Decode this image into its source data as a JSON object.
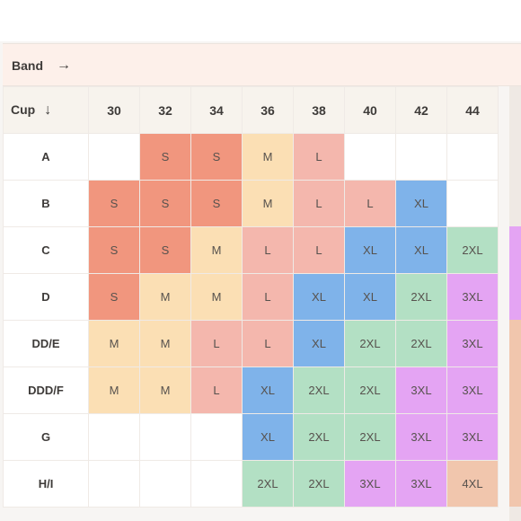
{
  "band_header": {
    "label": "Band",
    "arrow": "→"
  },
  "cup_header": {
    "label": "Cup",
    "arrow": "↓"
  },
  "bands": [
    "30",
    "32",
    "34",
    "36",
    "38",
    "40",
    "42",
    "44"
  ],
  "colors": {
    "S": "#f1967e",
    "M": "#fbdfb4",
    "L": "#f4b7ad",
    "XL": "#7fb3ea",
    "2XL": "#b3e0c4",
    "3XL": "#e4a4f3",
    "4XL": "#f1c6ad"
  },
  "rows": [
    {
      "cup": "A",
      "sizes": [
        "",
        "S",
        "S",
        "M",
        "L",
        "",
        "",
        ""
      ]
    },
    {
      "cup": "B",
      "sizes": [
        "S",
        "S",
        "S",
        "M",
        "L",
        "L",
        "XL",
        ""
      ]
    },
    {
      "cup": "C",
      "sizes": [
        "S",
        "S",
        "M",
        "L",
        "L",
        "XL",
        "XL",
        "2XL"
      ]
    },
    {
      "cup": "D",
      "sizes": [
        "S",
        "M",
        "M",
        "L",
        "XL",
        "XL",
        "2XL",
        "3XL"
      ]
    },
    {
      "cup": "DD/E",
      "sizes": [
        "M",
        "M",
        "L",
        "L",
        "XL",
        "2XL",
        "2XL",
        "3XL"
      ]
    },
    {
      "cup": "DDD/F",
      "sizes": [
        "M",
        "M",
        "L",
        "XL",
        "2XL",
        "2XL",
        "3XL",
        "3XL"
      ]
    },
    {
      "cup": "G",
      "sizes": [
        "",
        "",
        "",
        "XL",
        "2XL",
        "2XL",
        "3XL",
        "3XL"
      ]
    },
    {
      "cup": "H/I",
      "sizes": [
        "",
        "",
        "",
        "2XL",
        "2XL",
        "3XL",
        "3XL",
        "4XL"
      ]
    }
  ]
}
